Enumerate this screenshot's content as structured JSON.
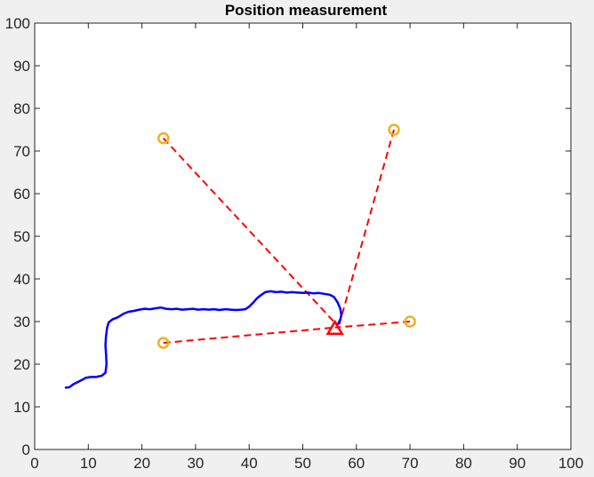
{
  "chart_data": {
    "type": "line",
    "title": "Position measurement",
    "xlabel": "",
    "ylabel": "",
    "xlim": [
      0,
      100
    ],
    "ylim": [
      0,
      100
    ],
    "xticks": [
      0,
      10,
      20,
      30,
      40,
      50,
      60,
      70,
      80,
      90,
      100
    ],
    "yticks": [
      0,
      10,
      20,
      30,
      40,
      50,
      60,
      70,
      80,
      90,
      100
    ],
    "grid": false,
    "legend": "none",
    "series": [
      {
        "kind": "trajectory",
        "color": "#0000ff",
        "points": [
          [
            5.8,
            14.5
          ],
          [
            6.5,
            14.6
          ],
          [
            7.2,
            15.3
          ],
          [
            8.0,
            15.8
          ],
          [
            8.8,
            16.3
          ],
          [
            9.5,
            16.8
          ],
          [
            10.5,
            17.0
          ],
          [
            11.5,
            17.0
          ],
          [
            12.5,
            17.3
          ],
          [
            13.2,
            18.0
          ],
          [
            13.4,
            20.0
          ],
          [
            13.3,
            22.5
          ],
          [
            13.2,
            24.5
          ],
          [
            13.3,
            26.5
          ],
          [
            13.5,
            28.5
          ],
          [
            13.8,
            29.8
          ],
          [
            14.5,
            30.5
          ],
          [
            15.5,
            31.0
          ],
          [
            16.5,
            31.8
          ],
          [
            17.5,
            32.3
          ],
          [
            18.5,
            32.5
          ],
          [
            19.5,
            32.8
          ],
          [
            20.5,
            33.0
          ],
          [
            21.5,
            32.9
          ],
          [
            22.5,
            33.1
          ],
          [
            23.5,
            33.3
          ],
          [
            24.5,
            33.0
          ],
          [
            25.5,
            32.9
          ],
          [
            26.5,
            33.0
          ],
          [
            27.5,
            32.8
          ],
          [
            28.5,
            32.9
          ],
          [
            29.5,
            33.0
          ],
          [
            30.5,
            32.8
          ],
          [
            31.5,
            32.9
          ],
          [
            32.5,
            32.8
          ],
          [
            33.5,
            32.9
          ],
          [
            34.5,
            32.7
          ],
          [
            35.5,
            32.9
          ],
          [
            36.5,
            32.8
          ],
          [
            37.5,
            32.7
          ],
          [
            38.5,
            32.8
          ],
          [
            39.3,
            32.9
          ],
          [
            40.0,
            33.5
          ],
          [
            40.8,
            34.5
          ],
          [
            41.5,
            35.5
          ],
          [
            42.3,
            36.3
          ],
          [
            43.0,
            36.9
          ],
          [
            44.0,
            37.1
          ],
          [
            45.0,
            36.9
          ],
          [
            46.0,
            37.0
          ],
          [
            47.0,
            36.8
          ],
          [
            48.0,
            36.9
          ],
          [
            49.0,
            36.8
          ],
          [
            50.0,
            36.7
          ],
          [
            51.0,
            36.8
          ],
          [
            52.0,
            36.6
          ],
          [
            53.0,
            36.7
          ],
          [
            54.0,
            36.5
          ],
          [
            55.0,
            36.3
          ],
          [
            55.8,
            35.8
          ],
          [
            56.5,
            34.5
          ],
          [
            57.0,
            33.0
          ],
          [
            57.2,
            31.5
          ],
          [
            57.0,
            30.5
          ],
          [
            56.6,
            29.5
          ]
        ]
      }
    ],
    "anchors": {
      "color": "#edb120",
      "marker": "circle",
      "points": [
        [
          24,
          73
        ],
        [
          67,
          75
        ],
        [
          24,
          25
        ],
        [
          70,
          30
        ]
      ]
    },
    "estimate": {
      "color": "#ff0000",
      "marker": "triangle",
      "point": [
        56,
        28.3
      ]
    },
    "range_lines": {
      "color": "#ff0000",
      "style": "dashed",
      "segments": [
        [
          [
            24,
            73
          ],
          [
            56.3,
            29.3
          ]
        ],
        [
          [
            67,
            75
          ],
          [
            56.8,
            29.3
          ]
        ],
        [
          [
            24,
            25
          ],
          [
            56,
            28.6
          ]
        ],
        [
          [
            70,
            30
          ],
          [
            56,
            28.6
          ]
        ]
      ]
    }
  }
}
